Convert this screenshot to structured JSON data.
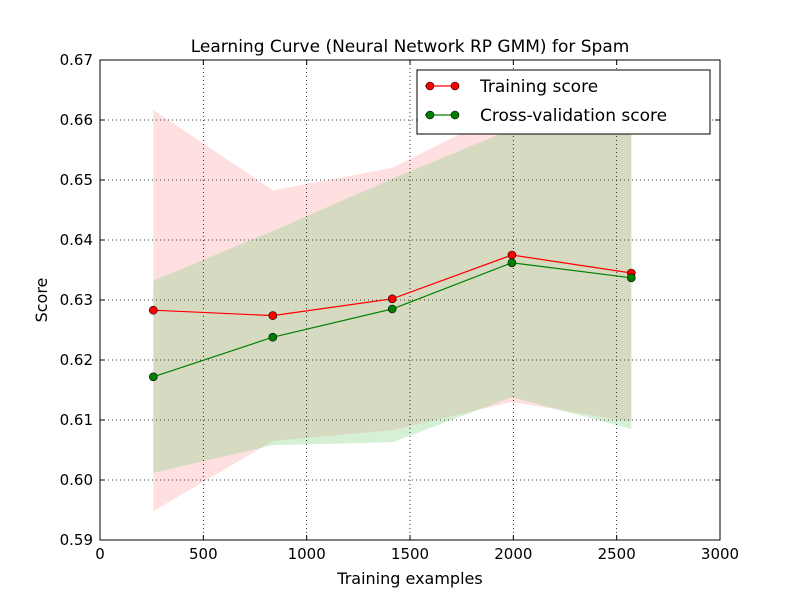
{
  "chart_data": {
    "type": "line",
    "title": "Learning Curve (Neural Network RP GMM) for Spam",
    "xlabel": "Training examples",
    "ylabel": "Score",
    "xlim": [
      0,
      3000
    ],
    "ylim": [
      0.59,
      0.67
    ],
    "x_ticks": [
      0,
      500,
      1000,
      1500,
      2000,
      2500,
      3000
    ],
    "x_tick_labels": [
      "0",
      "500",
      "1000",
      "1500",
      "2000",
      "2500",
      "3000"
    ],
    "y_ticks": [
      0.59,
      0.6,
      0.61,
      0.62,
      0.63,
      0.64,
      0.65,
      0.66,
      0.67
    ],
    "y_tick_labels": [
      "0.59",
      "0.60",
      "0.61",
      "0.62",
      "0.63",
      "0.64",
      "0.65",
      "0.66",
      "0.67"
    ],
    "grid": true,
    "legend_position": "top-right",
    "x": [
      258,
      836,
      1414,
      1993,
      2571
    ],
    "series": [
      {
        "name": "Training score",
        "color": "#ff0000",
        "band_color": "#ff9999",
        "values": [
          0.6283,
          0.6274,
          0.6302,
          0.6375,
          0.6345
        ],
        "upper": [
          0.6617,
          0.6483,
          0.652,
          0.662,
          0.6655
        ],
        "lower": [
          0.5948,
          0.6065,
          0.6083,
          0.613,
          0.6097
        ]
      },
      {
        "name": "Cross-validation score",
        "color": "#008000",
        "band_color": "#77cc77",
        "values": [
          0.6172,
          0.6238,
          0.6285,
          0.6362,
          0.6337
        ],
        "upper": [
          0.6332,
          0.6415,
          0.6502,
          0.6585,
          0.659
        ],
        "lower": [
          0.6012,
          0.6058,
          0.6063,
          0.6138,
          0.6085
        ]
      }
    ]
  }
}
